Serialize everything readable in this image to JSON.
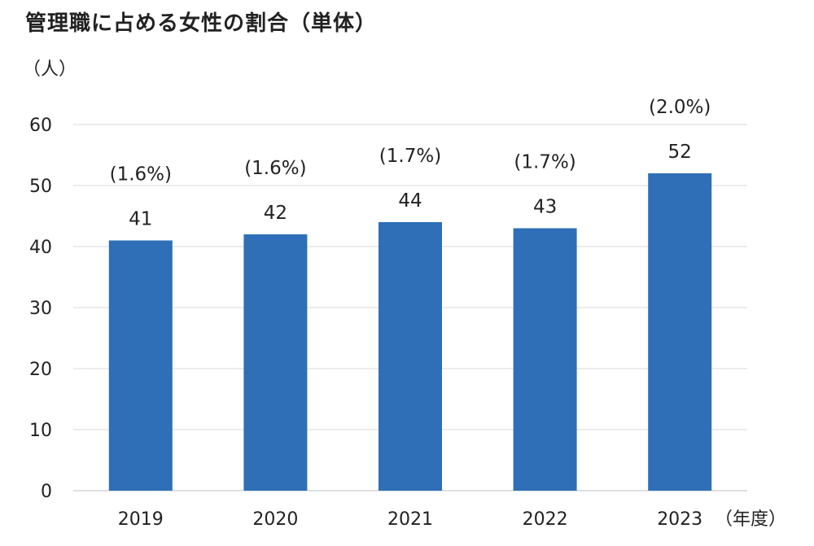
{
  "chart_data": {
    "type": "bar",
    "title": "管理職に占める女性の割合（単体）",
    "ylabel": "（人）",
    "xlabel": "（年度）",
    "ylim": [
      0,
      60
    ],
    "yticks": [
      0,
      10,
      20,
      30,
      40,
      50,
      60
    ],
    "grid": true,
    "legend": "none",
    "categories": [
      "2019",
      "2020",
      "2021",
      "2022",
      "2023"
    ],
    "series": [
      {
        "values": [
          41,
          42,
          44,
          43,
          52
        ],
        "annotations": [
          "(1.6%)",
          "(1.6%)",
          "(1.7%)",
          "(1.7%)",
          "(2.0%)"
        ],
        "color": "#2e6fb7"
      }
    ],
    "gridColor": "#d9d9d9",
    "axisColor": "#bfbfbf"
  }
}
